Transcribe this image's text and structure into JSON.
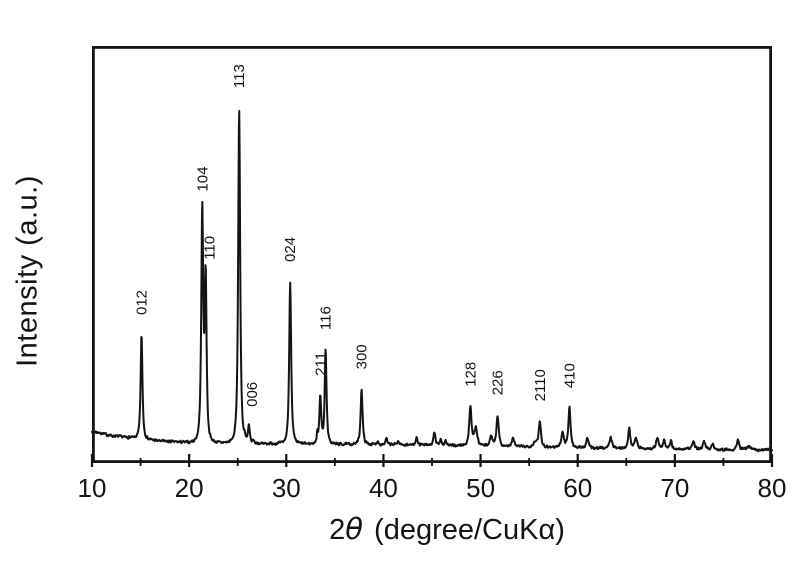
{
  "figure": {
    "background": "#ffffff",
    "line_color": "#141414"
  },
  "chart_data": {
    "type": "line",
    "title": "",
    "xlabel": "2θ (degree/CuKα)",
    "xlabel_parts": {
      "prefix": "2",
      "theta": "θ",
      "rest": "(degree/CuKα)"
    },
    "ylabel": "Intensity (a.u.)",
    "xlim": [
      10,
      80
    ],
    "ylim": [
      0,
      1175
    ],
    "grid": false,
    "legend": "none",
    "y_ticks": "none (arbitrary units)",
    "x_major_ticks": [
      10,
      20,
      30,
      40,
      50,
      60,
      70,
      80
    ],
    "x_tick_labels": [
      "10",
      "20",
      "30",
      "40",
      "50",
      "60",
      "70",
      "80"
    ],
    "x_minor_ticks": [
      15,
      25,
      35,
      45,
      55,
      65,
      75
    ],
    "intensity_scale": "arbitrary units, strongest peak (113) = 1000 above baseline",
    "baseline_points_t_I": [
      [
        10,
        90
      ],
      [
        12,
        77
      ],
      [
        15,
        68
      ],
      [
        17,
        62
      ],
      [
        20,
        57
      ],
      [
        25,
        55
      ],
      [
        30,
        54
      ],
      [
        35,
        53
      ],
      [
        40,
        52
      ],
      [
        45,
        50
      ],
      [
        50,
        48
      ],
      [
        55,
        46
      ],
      [
        60,
        43
      ],
      [
        65,
        41
      ],
      [
        70,
        39
      ],
      [
        75,
        38
      ],
      [
        80,
        37
      ]
    ],
    "peaks": [
      {
        "two_theta": 15.1,
        "intensity": 293,
        "width": 0.13,
        "label": "012"
      },
      {
        "two_theta": 21.35,
        "intensity": 652,
        "width": 0.14,
        "label": "104"
      },
      {
        "two_theta": 21.7,
        "intensity": 460,
        "width": 0.13,
        "label": "110",
        "label_dx": 4
      },
      {
        "two_theta": 25.15,
        "intensity": 945,
        "width": 0.14,
        "label": "113"
      },
      {
        "two_theta": 26.15,
        "intensity": 47,
        "width": 0.12,
        "label": "006",
        "label_dx": 3
      },
      {
        "two_theta": 30.4,
        "intensity": 456,
        "width": 0.14,
        "label": "024"
      },
      {
        "two_theta": 33.5,
        "intensity": 136,
        "width": 0.13,
        "label": "211"
      },
      {
        "two_theta": 34.05,
        "intensity": 265,
        "width": 0.13,
        "label": "116"
      },
      {
        "two_theta": 37.75,
        "intensity": 155,
        "width": 0.14,
        "label": "300"
      },
      {
        "two_theta": 48.95,
        "intensity": 110,
        "width": 0.16,
        "label": "128"
      },
      {
        "two_theta": 51.75,
        "intensity": 87,
        "width": 0.16,
        "label": "226"
      },
      {
        "two_theta": 56.1,
        "intensity": 72,
        "width": 0.16,
        "label": "2110"
      },
      {
        "two_theta": 59.15,
        "intensity": 111,
        "width": 0.16,
        "label": "410"
      }
    ],
    "minor_peaks_t_I_w": [
      [
        25.7,
        12,
        0.08
      ],
      [
        26.6,
        8,
        0.1
      ],
      [
        33.2,
        25,
        0.09
      ],
      [
        39.4,
        10,
        0.12
      ],
      [
        40.3,
        17,
        0.12
      ],
      [
        41.5,
        10,
        0.15
      ],
      [
        43.4,
        20,
        0.15
      ],
      [
        45.25,
        35,
        0.14
      ],
      [
        45.9,
        18,
        0.12
      ],
      [
        46.4,
        14,
        0.12
      ],
      [
        49.5,
        50,
        0.2
      ],
      [
        51.1,
        28,
        0.18
      ],
      [
        53.35,
        25,
        0.15
      ],
      [
        55.6,
        14,
        0.2
      ],
      [
        58.45,
        42,
        0.18
      ],
      [
        61.0,
        28,
        0.15
      ],
      [
        63.4,
        31,
        0.18
      ],
      [
        65.3,
        57,
        0.16
      ],
      [
        66.0,
        30,
        0.18
      ],
      [
        68.2,
        30,
        0.18
      ],
      [
        68.9,
        25,
        0.15
      ],
      [
        69.6,
        22,
        0.15
      ],
      [
        71.9,
        20,
        0.2
      ],
      [
        73.0,
        23,
        0.18
      ],
      [
        73.9,
        16,
        0.15
      ],
      [
        76.5,
        30,
        0.15
      ],
      [
        77.6,
        11,
        0.2
      ]
    ]
  }
}
